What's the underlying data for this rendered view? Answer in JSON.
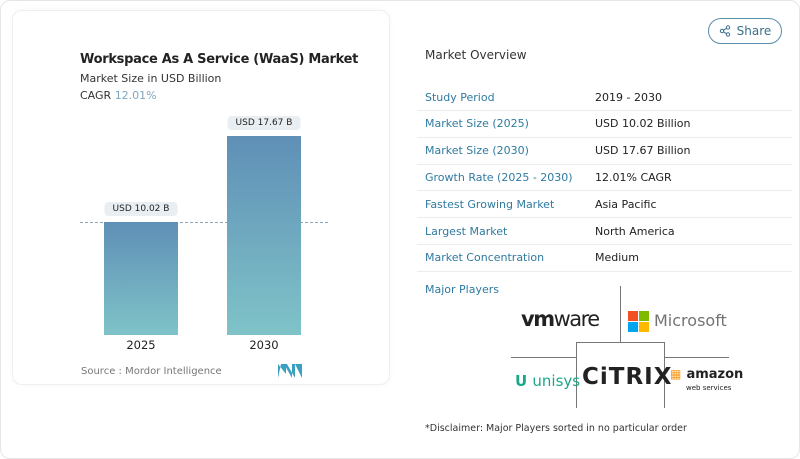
{
  "share_label": "Share",
  "chart_data": {
    "type": "bar",
    "title": "Workspace As A Service (WaaS) Market",
    "subtitle": "Market Size in USD Billion",
    "cagr_label": "CAGR",
    "cagr_value": "12.01%",
    "categories": [
      "2025",
      "2030"
    ],
    "values": [
      10.02,
      17.67
    ],
    "data_labels": [
      "USD 10.02 B",
      "USD 17.67 B"
    ],
    "bar_colors": [
      "#5f8fb6",
      "#7fc3c8"
    ],
    "reference_line": "dashed at 2025 value",
    "source": "Source :  Mordor Intelligence"
  },
  "overview": {
    "title": "Market Overview",
    "rows": [
      {
        "k": "Study Period",
        "v": "2019 - 2030"
      },
      {
        "k": "Market Size (2025)",
        "v": "USD 10.02 Billion"
      },
      {
        "k": "Market Size (2030)",
        "v": "USD 17.67 Billion"
      },
      {
        "k": "Growth Rate (2025 - 2030)",
        "v": "12.01% CAGR"
      },
      {
        "k": "Fastest Growing Market",
        "v": "Asia Pacific"
      },
      {
        "k": "Largest Market",
        "v": "North America"
      },
      {
        "k": "Market Concentration",
        "v": "Medium"
      }
    ]
  },
  "players": {
    "title": "Major Players",
    "logos": [
      "vmware",
      "Microsoft",
      "unisys",
      "CiTRIX",
      "amazon web services"
    ],
    "disclaimer": "*Disclaimer: Major Players sorted in no particular order"
  }
}
